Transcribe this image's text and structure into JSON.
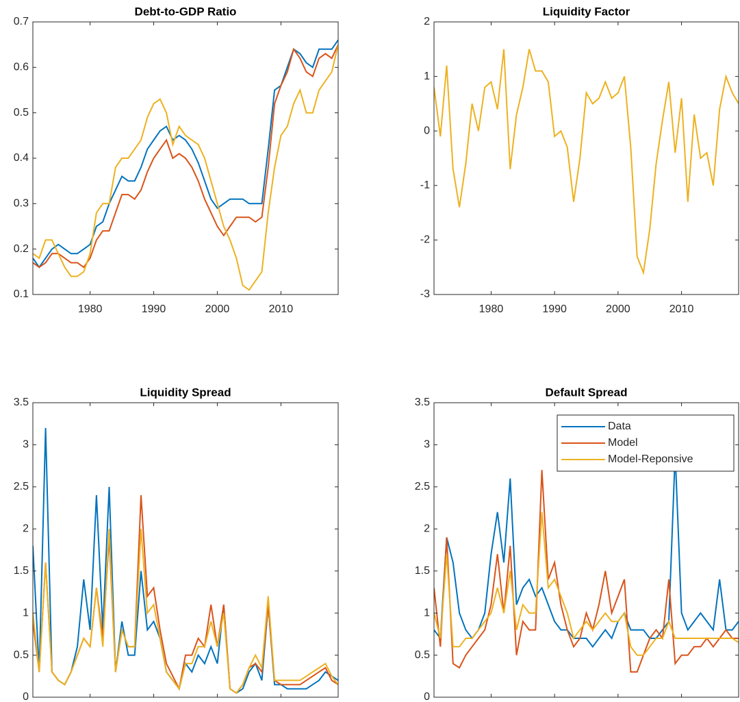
{
  "chart_data": [
    {
      "type": "line",
      "title": "Debt-to-GDP Ratio",
      "x": [
        1971,
        1972,
        1973,
        1974,
        1975,
        1976,
        1977,
        1978,
        1979,
        1980,
        1981,
        1982,
        1983,
        1984,
        1985,
        1986,
        1987,
        1988,
        1989,
        1990,
        1991,
        1992,
        1993,
        1994,
        1995,
        1996,
        1997,
        1998,
        1999,
        2000,
        2001,
        2002,
        2003,
        2004,
        2005,
        2006,
        2007,
        2008,
        2009,
        2010,
        2011,
        2012,
        2013,
        2014,
        2015,
        2016,
        2017,
        2018,
        2019
      ],
      "series": [
        {
          "color": "#0072bd",
          "values": [
            0.18,
            0.16,
            0.18,
            0.2,
            0.21,
            0.2,
            0.19,
            0.19,
            0.2,
            0.21,
            0.25,
            0.26,
            0.3,
            0.33,
            0.36,
            0.35,
            0.35,
            0.38,
            0.42,
            0.44,
            0.46,
            0.47,
            0.44,
            0.45,
            0.44,
            0.42,
            0.39,
            0.35,
            0.31,
            0.29,
            0.3,
            0.31,
            0.31,
            0.31,
            0.3,
            0.3,
            0.3,
            0.42,
            0.55,
            0.56,
            0.6,
            0.64,
            0.63,
            0.61,
            0.6,
            0.64,
            0.64,
            0.64,
            0.66
          ]
        },
        {
          "color": "#d95319",
          "values": [
            0.17,
            0.16,
            0.17,
            0.19,
            0.19,
            0.18,
            0.17,
            0.17,
            0.16,
            0.18,
            0.22,
            0.24,
            0.24,
            0.28,
            0.32,
            0.32,
            0.31,
            0.33,
            0.37,
            0.4,
            0.42,
            0.44,
            0.4,
            0.41,
            0.4,
            0.38,
            0.35,
            0.31,
            0.28,
            0.25,
            0.23,
            0.25,
            0.27,
            0.27,
            0.27,
            0.26,
            0.27,
            0.38,
            0.52,
            0.56,
            0.59,
            0.64,
            0.62,
            0.59,
            0.58,
            0.62,
            0.63,
            0.62,
            0.65
          ]
        },
        {
          "color": "#edb120",
          "values": [
            0.19,
            0.18,
            0.22,
            0.22,
            0.19,
            0.16,
            0.14,
            0.14,
            0.15,
            0.19,
            0.28,
            0.3,
            0.3,
            0.38,
            0.4,
            0.4,
            0.42,
            0.44,
            0.49,
            0.52,
            0.53,
            0.5,
            0.43,
            0.47,
            0.45,
            0.44,
            0.43,
            0.4,
            0.35,
            0.3,
            0.25,
            0.22,
            0.18,
            0.12,
            0.11,
            0.13,
            0.15,
            0.28,
            0.38,
            0.45,
            0.47,
            0.52,
            0.55,
            0.5,
            0.5,
            0.55,
            0.57,
            0.59,
            0.65
          ]
        }
      ],
      "xlim": [
        1971,
        2019
      ],
      "xticks": [
        1980,
        1990,
        2000,
        2010
      ],
      "ylim": [
        0.1,
        0.7
      ],
      "yticks": [
        0.1,
        0.2,
        0.3,
        0.4,
        0.5,
        0.6,
        0.7
      ]
    },
    {
      "type": "line",
      "title": "Liquidity Factor",
      "x": [
        1971,
        1972,
        1973,
        1974,
        1975,
        1976,
        1977,
        1978,
        1979,
        1980,
        1981,
        1982,
        1983,
        1984,
        1985,
        1986,
        1987,
        1988,
        1989,
        1990,
        1991,
        1992,
        1993,
        1994,
        1995,
        1996,
        1997,
        1998,
        1999,
        2000,
        2001,
        2002,
        2003,
        2004,
        2005,
        2006,
        2007,
        2008,
        2009,
        2010,
        2011,
        2012,
        2013,
        2014,
        2015,
        2016,
        2017,
        2018,
        2019
      ],
      "series": [
        {
          "color": "#edb120",
          "values": [
            0.8,
            -0.1,
            1.2,
            -0.7,
            -1.4,
            -0.6,
            0.5,
            0.0,
            0.8,
            0.9,
            0.4,
            1.5,
            -0.7,
            0.3,
            0.8,
            1.5,
            1.1,
            1.1,
            0.9,
            -0.1,
            0.0,
            -0.3,
            -1.3,
            -0.5,
            0.7,
            0.5,
            0.6,
            0.9,
            0.6,
            0.7,
            1.0,
            -0.3,
            -2.3,
            -2.6,
            -1.8,
            -0.6,
            0.2,
            0.9,
            -0.4,
            0.6,
            -1.3,
            0.3,
            -0.5,
            -0.4,
            -1.0,
            0.4,
            1.0,
            0.7,
            0.5
          ]
        }
      ],
      "xlim": [
        1971,
        2019
      ],
      "xticks": [
        1980,
        1990,
        2000,
        2010
      ],
      "ylim": [
        -3,
        2
      ],
      "yticks": [
        -3,
        -2,
        -1,
        0,
        1,
        2
      ]
    },
    {
      "type": "line",
      "title": "Liquidity Spread",
      "x": [
        1971,
        1972,
        1973,
        1974,
        1975,
        1976,
        1977,
        1978,
        1979,
        1980,
        1981,
        1982,
        1983,
        1984,
        1985,
        1986,
        1987,
        1988,
        1989,
        1990,
        1991,
        1992,
        1993,
        1994,
        1995,
        1996,
        1997,
        1998,
        1999,
        2000,
        2001,
        2002,
        2003,
        2004,
        2005,
        2006,
        2007,
        2008,
        2009,
        2010,
        2011,
        2012,
        2013,
        2014,
        2015,
        2016,
        2017,
        2018,
        2019
      ],
      "series": [
        {
          "color": "#0072bd",
          "values": [
            1.8,
            0.3,
            3.2,
            0.3,
            0.2,
            0.15,
            0.3,
            0.6,
            1.4,
            0.8,
            2.4,
            0.8,
            2.5,
            0.3,
            0.9,
            0.5,
            0.5,
            1.5,
            0.8,
            0.9,
            0.7,
            0.3,
            0.2,
            0.1,
            0.4,
            0.3,
            0.5,
            0.4,
            0.6,
            0.4,
            1.1,
            0.1,
            0.05,
            0.1,
            0.3,
            0.4,
            0.2,
            1.1,
            0.15,
            0.15,
            0.1,
            0.1,
            0.1,
            0.1,
            0.15,
            0.2,
            0.3,
            0.25,
            0.2
          ]
        },
        {
          "color": "#d95319",
          "values": [
            0.9,
            0.3,
            1.6,
            0.3,
            0.2,
            0.15,
            0.3,
            0.5,
            0.7,
            0.6,
            1.3,
            0.7,
            1.9,
            0.3,
            0.8,
            0.6,
            0.6,
            2.4,
            1.2,
            1.3,
            0.8,
            0.4,
            0.25,
            0.1,
            0.5,
            0.5,
            0.7,
            0.6,
            1.1,
            0.6,
            1.1,
            0.1,
            0.05,
            0.15,
            0.35,
            0.4,
            0.3,
            1.1,
            0.2,
            0.15,
            0.15,
            0.15,
            0.15,
            0.2,
            0.25,
            0.3,
            0.35,
            0.2,
            0.15
          ]
        },
        {
          "color": "#edb120",
          "values": [
            1.0,
            0.3,
            1.6,
            0.3,
            0.2,
            0.15,
            0.3,
            0.5,
            0.7,
            0.6,
            1.3,
            0.6,
            2.0,
            0.3,
            0.8,
            0.6,
            0.6,
            2.0,
            1.0,
            1.1,
            0.7,
            0.3,
            0.2,
            0.1,
            0.4,
            0.4,
            0.6,
            0.6,
            0.9,
            0.6,
            1.0,
            0.1,
            0.05,
            0.15,
            0.35,
            0.5,
            0.35,
            1.2,
            0.2,
            0.2,
            0.2,
            0.2,
            0.2,
            0.25,
            0.3,
            0.35,
            0.4,
            0.25,
            0.15
          ]
        }
      ],
      "xlim": [
        1971,
        2019
      ],
      "xticks": [
        1980,
        1990,
        2000,
        2010
      ],
      "ylim": [
        0,
        3.5
      ],
      "yticks": [
        0,
        0.5,
        1,
        1.5,
        2,
        2.5,
        3,
        3.5
      ]
    },
    {
      "type": "line",
      "title": "Default Spread",
      "x": [
        1971,
        1972,
        1973,
        1974,
        1975,
        1976,
        1977,
        1978,
        1979,
        1980,
        1981,
        1982,
        1983,
        1984,
        1985,
        1986,
        1987,
        1988,
        1989,
        1990,
        1991,
        1992,
        1993,
        1994,
        1995,
        1996,
        1997,
        1998,
        1999,
        2000,
        2001,
        2002,
        2003,
        2004,
        2005,
        2006,
        2007,
        2008,
        2009,
        2010,
        2011,
        2012,
        2013,
        2014,
        2015,
        2016,
        2017,
        2018,
        2019
      ],
      "series": [
        {
          "name": "Data",
          "color": "#0072bd",
          "values": [
            0.8,
            0.7,
            1.9,
            1.6,
            1.0,
            0.8,
            0.7,
            0.8,
            1.0,
            1.7,
            2.2,
            1.6,
            2.6,
            1.1,
            1.3,
            1.4,
            1.2,
            1.3,
            1.1,
            0.9,
            0.8,
            0.8,
            0.7,
            0.7,
            0.7,
            0.6,
            0.7,
            0.8,
            0.7,
            0.9,
            1.0,
            0.8,
            0.8,
            0.8,
            0.7,
            0.7,
            0.8,
            0.9,
            2.9,
            1.0,
            0.8,
            0.9,
            1.0,
            0.9,
            0.8,
            1.4,
            0.8,
            0.8,
            0.9
          ]
        },
        {
          "name": "Model",
          "color": "#d95319",
          "values": [
            1.3,
            0.6,
            1.9,
            0.4,
            0.35,
            0.5,
            0.6,
            0.7,
            0.8,
            1.1,
            1.7,
            1.0,
            1.8,
            0.5,
            0.9,
            0.8,
            0.8,
            2.7,
            1.4,
            1.6,
            1.1,
            0.8,
            0.6,
            0.7,
            1.0,
            0.8,
            1.1,
            1.5,
            1.0,
            1.2,
            1.4,
            0.3,
            0.3,
            0.5,
            0.7,
            0.8,
            0.7,
            1.4,
            0.4,
            0.5,
            0.5,
            0.6,
            0.6,
            0.7,
            0.6,
            0.7,
            0.8,
            0.7,
            0.7
          ]
        },
        {
          "name": "Model-Reponsive",
          "color": "#edb120",
          "values": [
            1.0,
            0.7,
            1.7,
            0.6,
            0.6,
            0.7,
            0.7,
            0.8,
            0.9,
            1.0,
            1.3,
            1.0,
            1.5,
            0.8,
            1.1,
            1.0,
            1.0,
            2.2,
            1.3,
            1.4,
            1.2,
            1.0,
            0.7,
            0.8,
            0.9,
            0.8,
            0.9,
            1.0,
            0.9,
            0.9,
            1.0,
            0.6,
            0.5,
            0.5,
            0.6,
            0.7,
            0.7,
            0.9,
            0.7,
            0.7,
            0.7,
            0.7,
            0.7,
            0.7,
            0.7,
            0.7,
            0.7,
            0.7,
            0.65
          ]
        }
      ],
      "xlim": [
        1971,
        2019
      ],
      "xticks": [
        1980,
        1990,
        2000,
        2010
      ],
      "ylim": [
        0,
        3.5
      ],
      "yticks": [
        0,
        0.5,
        1,
        1.5,
        2,
        2.5,
        3,
        3.5
      ],
      "legend": "upper right"
    }
  ]
}
